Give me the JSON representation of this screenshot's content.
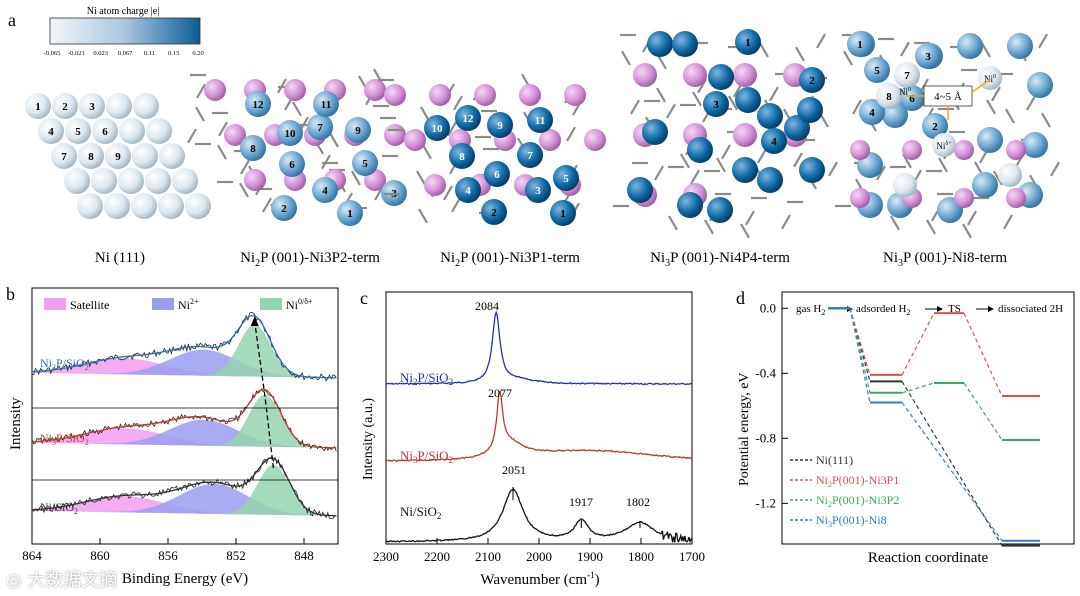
{
  "figure": {
    "panel_letters": {
      "a": "a",
      "b": "b",
      "c": "c",
      "d": "d"
    },
    "colors": {
      "ni_charge_low": "#eef3f8",
      "ni_charge_high": "#0b5d96",
      "phosphorus": "#d68fd6",
      "bond_gray": "#8a8a8a",
      "satellite": "#f29ef0",
      "ni2plus": "#9a9ef0",
      "ni0": "#95d3b0"
    }
  },
  "panel_a": {
    "colorbar": {
      "title": "Ni atom charge |e|",
      "ticks": [
        "-0.065",
        "-0.021",
        "0.023",
        "0.067",
        "0.11",
        "0.15",
        "0.20"
      ]
    },
    "structures": [
      {
        "name": "Ni (111)",
        "label": "Ni (111)",
        "numbers": [
          "1",
          "2",
          "3",
          "4",
          "5",
          "6",
          "7",
          "8",
          "9"
        ]
      },
      {
        "name": "Ni2P-Ni3P2",
        "label_parts": [
          "Ni",
          "2",
          "P (001)-Ni3P2-term"
        ],
        "numbers": [
          "1",
          "2",
          "3",
          "4",
          "5",
          "6",
          "7",
          "8",
          "9",
          "10",
          "11",
          "12"
        ]
      },
      {
        "name": "Ni2P-Ni3P1",
        "label_parts": [
          "Ni",
          "2",
          "P (001)-Ni3P1-term"
        ],
        "numbers": [
          "1",
          "2",
          "3",
          "4",
          "5",
          "6",
          "7",
          "8",
          "9",
          "10",
          "11",
          "12"
        ]
      },
      {
        "name": "Ni3P-Ni4P4",
        "label_parts": [
          "Ni",
          "3",
          "P (001)-Ni4P4-term"
        ],
        "numbers": [
          "1",
          "2",
          "3",
          "4"
        ]
      },
      {
        "name": "Ni3P-Ni8",
        "label_parts": [
          "Ni",
          "3",
          "P (001)-Ni8-term"
        ],
        "numbers": [
          "1",
          "2",
          "3",
          "4",
          "5",
          "6",
          "7",
          "8"
        ],
        "annotations": {
          "distance": "4~5 Å",
          "ni_delta_plus": "Ni",
          "ni_delta_plus_sup": "δ+",
          "ni_zero": "Ni",
          "ni_zero_sup": "0"
        }
      }
    ]
  },
  "panel_b": {
    "ylabel": "Intensity",
    "xlabel": "Binding Energy (eV)",
    "legend": [
      {
        "label": "Satellite",
        "color": "#f29ef0"
      },
      {
        "label": "Ni",
        "sup": "2+",
        "color": "#9a9ef0"
      },
      {
        "label": "Ni",
        "sup": "0/δ+",
        "color": "#95d3b0"
      }
    ],
    "spectra": [
      {
        "label_parts": [
          "Ni",
          "2",
          "P/SiO",
          "2"
        ],
        "color": "#2a6fb0",
        "peak_be": 850.9
      },
      {
        "label_parts": [
          "Ni",
          "3",
          "P/SiO",
          "2"
        ],
        "color": "#c0392b",
        "peak_be": 850.3
      },
      {
        "label_parts": [
          "Ni/SiO",
          "2"
        ],
        "color": "#333333",
        "peak_be": 849.8
      }
    ],
    "x_ticks": [
      "864",
      "860",
      "856",
      "852",
      "848"
    ],
    "xlim": [
      864,
      846
    ]
  },
  "panel_c": {
    "ylabel": "Intensity (a.u.)",
    "xlabel": "Wavenumber (cm",
    "xlabel_sup": "-1",
    "xlabel_tail": ")",
    "x_ticks": [
      "2300",
      "2200",
      "2100",
      "2000",
      "1900",
      "1800",
      "1700"
    ],
    "xlim": [
      2300,
      1700
    ],
    "spectra": [
      {
        "label_parts": [
          "Ni",
          "2",
          "P/SiO",
          "2"
        ],
        "color": "#2432b0",
        "peaks": [
          "2084"
        ]
      },
      {
        "label_parts": [
          "Ni",
          "3",
          "P/SiO",
          "2"
        ],
        "color": "#c0392b",
        "peaks": [
          "2077"
        ]
      },
      {
        "label_parts": [
          "Ni/SiO",
          "2"
        ],
        "color": "#111111",
        "peaks": [
          "2051",
          "1917",
          "1802"
        ]
      }
    ]
  },
  "panel_d": {
    "ylabel": "Potential energy, eV",
    "xlabel": "Reaction coordinate",
    "steps": {
      "s1": "gas H",
      "s1_sub": "2",
      "s2": "adsorded H",
      "s2_sub": "2",
      "s3": "TS",
      "s4": "dissociated 2H"
    },
    "y_ticks": [
      "0.0",
      "-0.4",
      "-0.8",
      "-1.2"
    ],
    "ylim": [
      -1.45,
      0.1
    ],
    "chart_data": {
      "type": "line",
      "x": [
        "gas H2",
        "adsorded H2",
        "TS",
        "dissociated 2H"
      ],
      "series": [
        {
          "name": "Ni(111)",
          "color": "#333333",
          "values": [
            0.0,
            -0.45,
            null,
            -1.46
          ]
        },
        {
          "name": "Ni2P(001)-Ni3P1",
          "color": "#d9534f",
          "values": [
            0.0,
            -0.41,
            -0.03,
            -0.54
          ]
        },
        {
          "name": "Ni2P(001)-Ni3P2",
          "color": "#3aa860",
          "values": [
            0.0,
            -0.52,
            -0.46,
            -0.81
          ]
        },
        {
          "name": "Ni3P(001)-Ni8",
          "color": "#2a7fc9",
          "values": [
            0.0,
            -0.58,
            null,
            -1.43
          ]
        }
      ]
    },
    "legend": [
      {
        "parts": [
          "Ni(111)"
        ],
        "color": "#333333"
      },
      {
        "parts": [
          "Ni",
          "2",
          "P(001)-Ni3P1"
        ],
        "color": "#d9534f"
      },
      {
        "parts": [
          "Ni",
          "2",
          "P(001)-Ni3P2"
        ],
        "color": "#3aa860"
      },
      {
        "parts": [
          "Ni",
          "3",
          "P(001)-Ni8"
        ],
        "color": "#2a7fc9"
      }
    ]
  },
  "watermark": {
    "text": "大数据文摘"
  }
}
